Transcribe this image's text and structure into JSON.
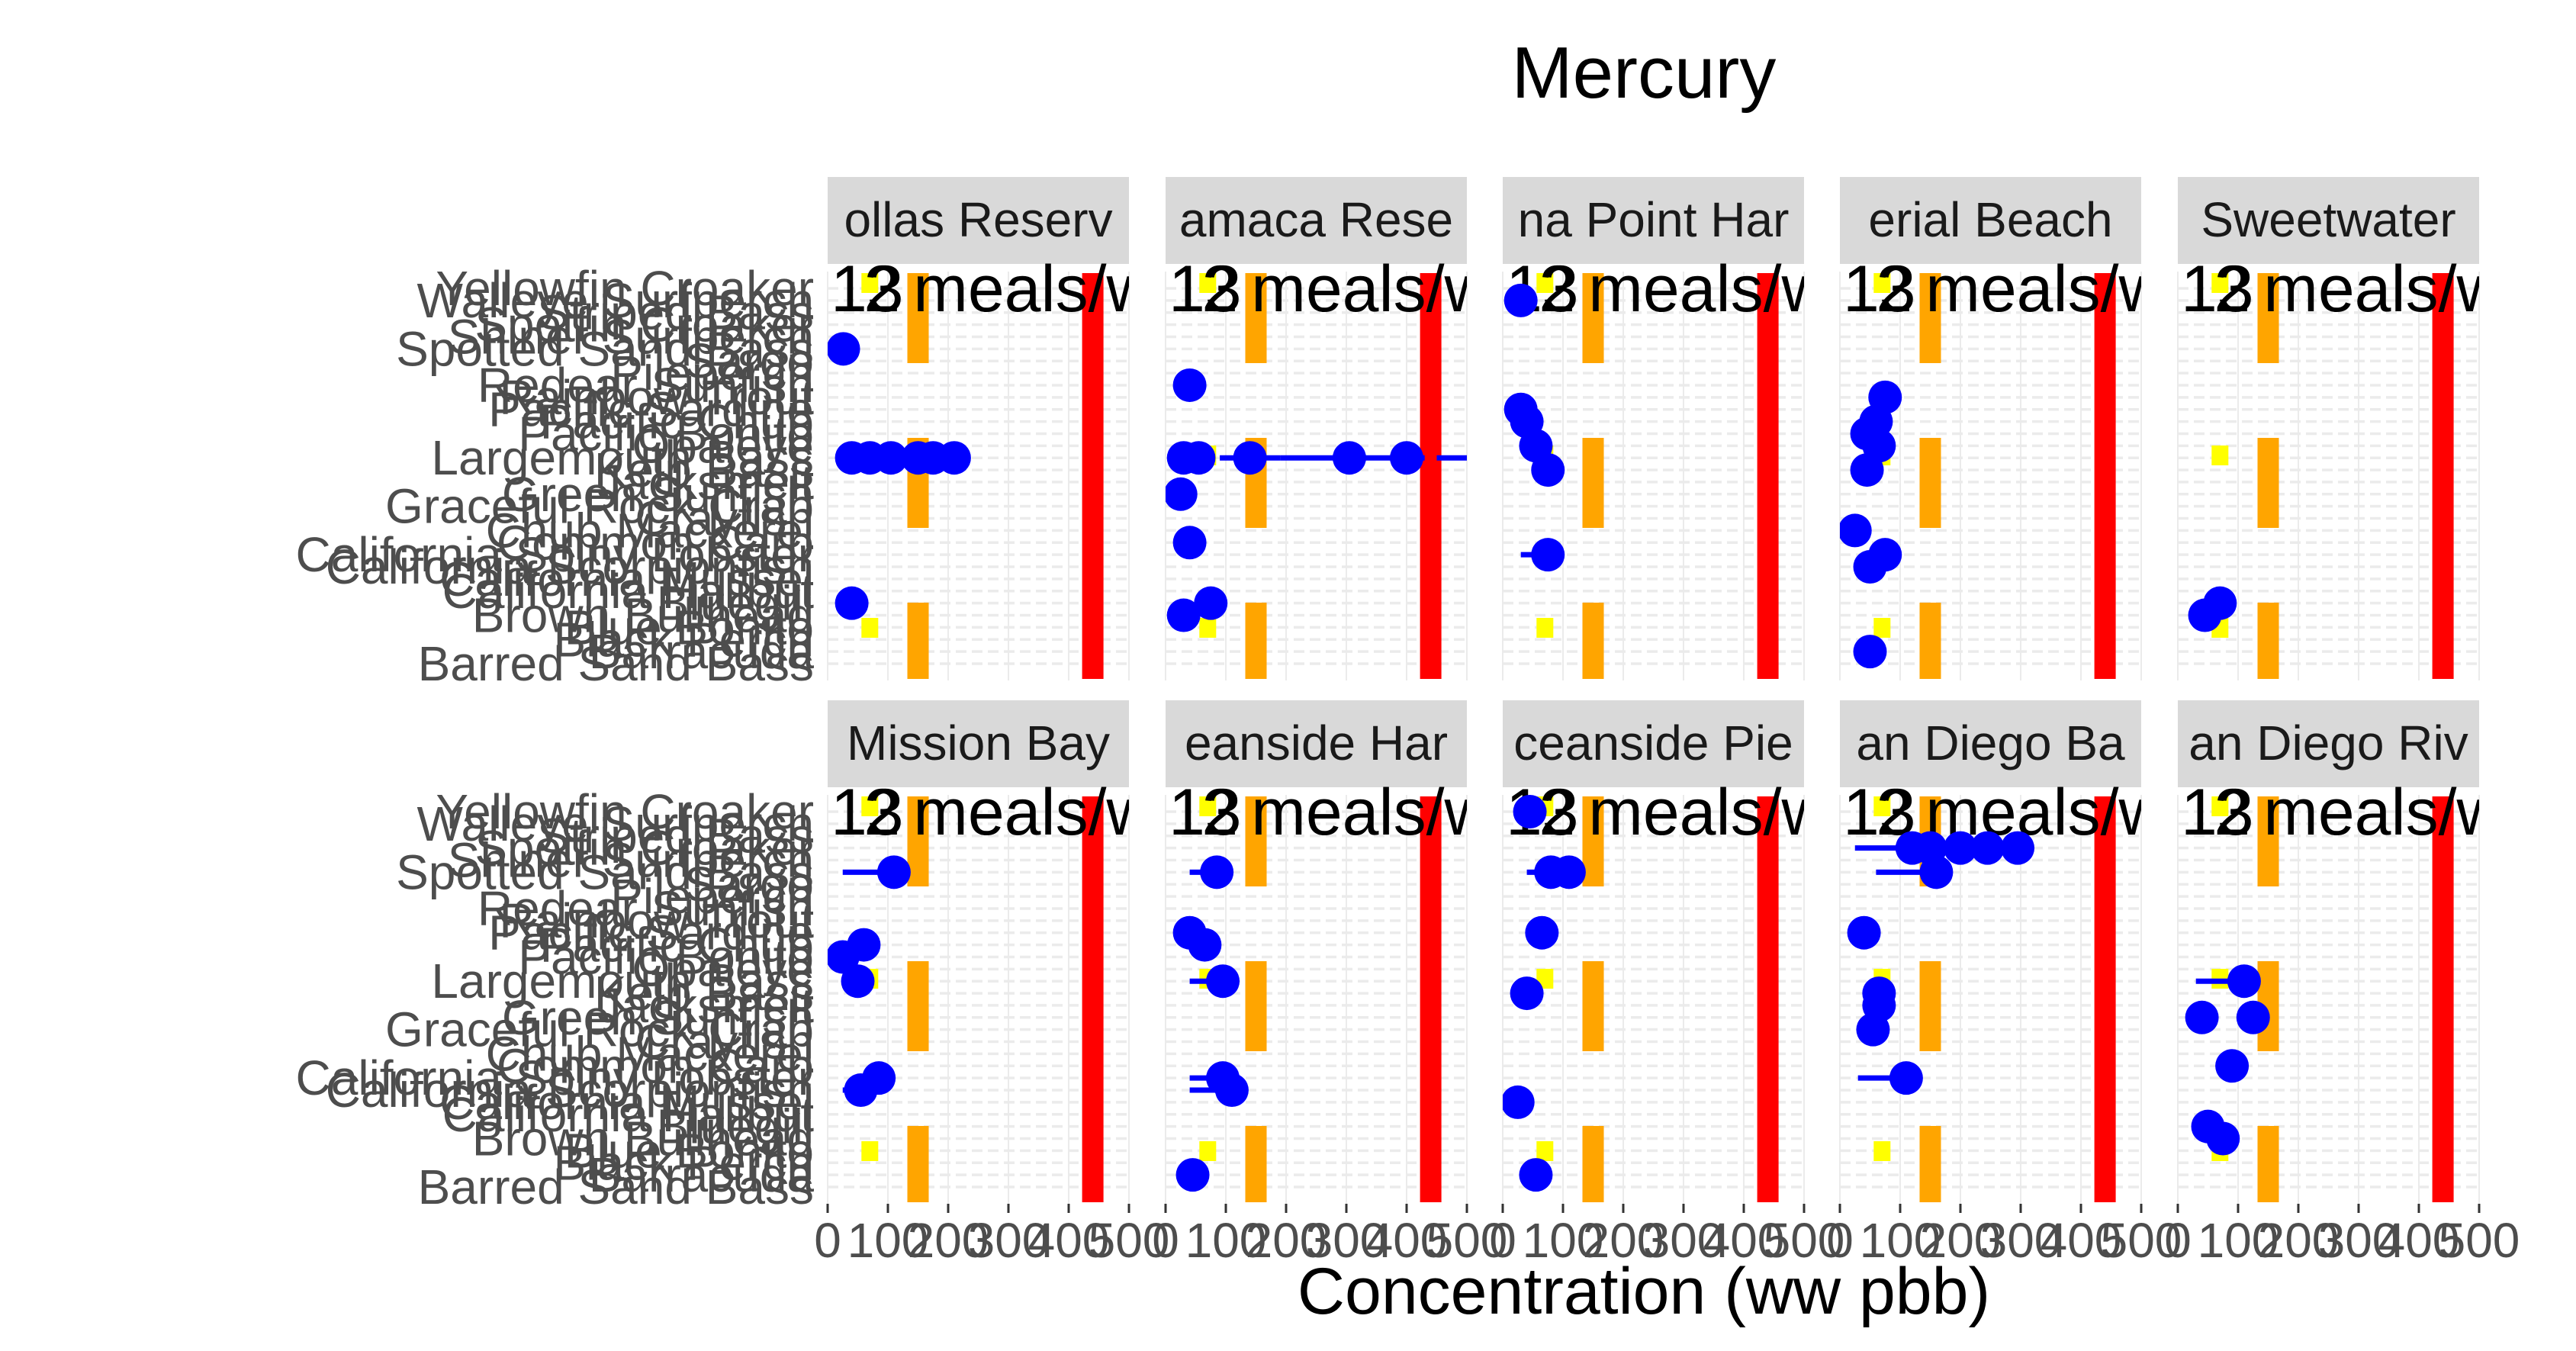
{
  "chart_data": {
    "type": "scatter",
    "title": "Mercury",
    "xlabel": "Concentration (ww pbb)",
    "ylabel": "",
    "xlim": [
      0,
      500
    ],
    "x_ticks": [
      0,
      100,
      200,
      300,
      400,
      500
    ],
    "x_tick_labels": [
      "0",
      "100",
      "200",
      "300",
      "400",
      "500"
    ],
    "species": [
      "Barred Sand Bass",
      "Barracuda",
      "Black Perch",
      "Blue Bonito",
      "Brown Bullhead",
      "Bluegill",
      "California Halibut",
      "California Mussel",
      "California Scorpionfish",
      "California Spiny Lobster",
      "Common Carp",
      "Chub Mackerel",
      "Crayfish",
      "Graceful Rock Crab",
      "Green Sunfish",
      "Jacksmelt",
      "Kelp Bass",
      "Largemouth Bass",
      "Opaleye",
      "Pacific Bonito",
      "Pacific Chub",
      "Pacific Sardine",
      "Rainbow Trout",
      "Redear Sunfish",
      "Pileperch",
      "Sargo",
      "Spotted Sand Bass",
      "Shiner Surfperch",
      "Spotfin Croaker",
      "Striped Bass",
      "Walleye Surfperch",
      "Yellowfin Croaker"
    ],
    "threshold_labels": [
      "13",
      "2",
      "meals/w"
    ],
    "threshold_lines": [
      {
        "label": "13",
        "value": 70,
        "color": "#ffff00"
      },
      {
        "label": "2",
        "value": 150,
        "color": "#ffa500"
      },
      {
        "label": "meals/w",
        "value": 440,
        "color": "#ff0000"
      }
    ],
    "facets": [
      {
        "name": "Lake Jennings/Hollas Reservoir",
        "label": "ollas Reserv",
        "points": [
          {
            "species": "Spotted Sand Bass",
            "x": 26
          },
          {
            "species": "Largemouth Bass",
            "x": 40,
            "xmin": 20,
            "xmax": 60
          },
          {
            "species": "Largemouth Bass",
            "x": 70,
            "xmin": 50,
            "xmax": 95
          },
          {
            "species": "Largemouth Bass",
            "x": 105,
            "xmin": 85,
            "xmax": 130
          },
          {
            "species": "Largemouth Bass",
            "x": 150,
            "xmin": 120,
            "xmax": 180
          },
          {
            "species": "Largemouth Bass",
            "x": 175,
            "xmin": 150,
            "xmax": 205
          },
          {
            "species": "Largemouth Bass",
            "x": 210,
            "xmin": 180,
            "xmax": 235
          },
          {
            "species": "Bluegill",
            "x": 40
          }
        ]
      },
      {
        "name": "Cuyamaca Reservoir",
        "label": "amaca Rese",
        "points": [
          {
            "species": "Redear Sunfish",
            "x": 40
          },
          {
            "species": "Largemouth Bass",
            "x": 30,
            "xmin": 20,
            "xmax": 40
          },
          {
            "species": "Largemouth Bass",
            "x": 55,
            "xmin": 40,
            "xmax": 70
          },
          {
            "species": "Largemouth Bass",
            "x": 140,
            "xmin": 90,
            "xmax": 190
          },
          {
            "species": "Largemouth Bass",
            "x": 305,
            "xmin": 190,
            "xmax": 330
          },
          {
            "species": "Largemouth Bass",
            "x": 400,
            "xmin": 330,
            "xmax": 430
          },
          {
            "species": "Largemouth Bass",
            "x": 535,
            "xmin": 450,
            "xmax": 550
          },
          {
            "species": "Green Sunfish",
            "x": 25
          },
          {
            "species": "Common Carp",
            "x": 40
          },
          {
            "species": "Brown Bullhead",
            "x": 30
          },
          {
            "species": "Bluegill",
            "x": 75
          }
        ]
      },
      {
        "name": "Dana Point Harbor",
        "label": "na Point Har",
        "points": [
          {
            "species": "Walleye Surfperch",
            "x": 30,
            "xmin": 15,
            "xmax": 45
          },
          {
            "species": "Pacific Sardine",
            "x": 30
          },
          {
            "species": "Pacific Chub",
            "x": 40
          },
          {
            "species": "Opaleye",
            "x": 55
          },
          {
            "species": "Kelp Bass",
            "x": 75
          },
          {
            "species": "California Spiny Lobster",
            "x": 75,
            "xmin": 30,
            "xmax": 85
          }
        ]
      },
      {
        "name": "Imperial Beach",
        "label": "erial Beach",
        "points": [
          {
            "species": "Rainbow Trout",
            "x": 75
          },
          {
            "species": "Pacific Bonito",
            "x": 45
          },
          {
            "species": "Pacific Chub",
            "x": 60
          },
          {
            "species": "Opaleye",
            "x": 65
          },
          {
            "species": "Kelp Bass",
            "x": 45
          },
          {
            "species": "California Spiny Lobster",
            "x": 75
          },
          {
            "species": "Chub Mackerel",
            "x": 25
          },
          {
            "species": "California Scorpionfish",
            "x": 50
          },
          {
            "species": "Barracuda",
            "x": 50
          }
        ]
      },
      {
        "name": "Sweetwater Reservoir",
        "label": "Sweetwater",
        "points": [
          {
            "species": "Brown Bullhead",
            "x": 45
          },
          {
            "species": "Bluegill",
            "x": 70
          }
        ]
      },
      {
        "name": "Mission Bay",
        "label": "Mission Bay",
        "points": [
          {
            "species": "Spotted Sand Bass",
            "x": 110,
            "xmin": 25,
            "xmax": 115
          },
          {
            "species": "Pacific Bonito",
            "x": 25
          },
          {
            "species": "Pacific Chub",
            "x": 60
          },
          {
            "species": "Largemouth Bass",
            "x": 50
          },
          {
            "species": "California Spiny Lobster",
            "x": 85
          },
          {
            "species": "California Scorpionfish",
            "x": 55,
            "xmin": 25,
            "xmax": 85
          }
        ]
      },
      {
        "name": "Oceanside Harbor",
        "label": "eanside Har",
        "points": [
          {
            "species": "Spotted Sand Bass",
            "x": 85,
            "xmin": 40,
            "xmax": 95
          },
          {
            "species": "Pacific Sardine",
            "x": 40
          },
          {
            "species": "Pacific Chub",
            "x": 65
          },
          {
            "species": "Largemouth Bass",
            "x": 95,
            "xmin": 40,
            "xmax": 110
          },
          {
            "species": "California Spiny Lobster",
            "x": 95,
            "xmin": 40,
            "xmax": 110
          },
          {
            "species": "California Scorpionfish",
            "x": 110,
            "xmin": 40,
            "xmax": 115
          },
          {
            "species": "Barracuda",
            "x": 45
          }
        ]
      },
      {
        "name": "Oceanside Pier",
        "label": "ceanside Pie",
        "points": [
          {
            "species": "Yellowfin Croaker",
            "x": 45
          },
          {
            "species": "Spotted Sand Bass",
            "x": 80,
            "xmin": 40,
            "xmax": 90
          },
          {
            "species": "Spotted Sand Bass",
            "x": 110,
            "xmin": 85,
            "xmax": 115
          },
          {
            "species": "Pacific Sardine",
            "x": 65
          },
          {
            "species": "Kelp Bass",
            "x": 40
          },
          {
            "species": "California Mussel",
            "x": 25
          },
          {
            "species": "Barracuda",
            "x": 55,
            "xmin": 40,
            "xmax": 80
          }
        ]
      },
      {
        "name": "San Diego Bay",
        "label": "an Diego Ba",
        "points": [
          {
            "species": "Spotfin Croaker",
            "x": 120,
            "xmin": 25,
            "xmax": 140
          },
          {
            "species": "Spotfin Croaker",
            "x": 150,
            "xmin": 120,
            "xmax": 175
          },
          {
            "species": "Spotfin Croaker",
            "x": 200,
            "xmin": 175,
            "xmax": 220
          },
          {
            "species": "Spotfin Croaker",
            "x": 245,
            "xmin": 220,
            "xmax": 265
          },
          {
            "species": "Spotfin Croaker",
            "x": 295,
            "xmin": 265,
            "xmax": 305
          },
          {
            "species": "Spotted Sand Bass",
            "x": 160,
            "xmin": 60,
            "xmax": 170
          },
          {
            "species": "Pacific Sardine",
            "x": 40
          },
          {
            "species": "Kelp Bass",
            "x": 65
          },
          {
            "species": "Jacksmelt",
            "x": 65
          },
          {
            "species": "Graceful Rock Crab",
            "x": 55
          },
          {
            "species": "California Spiny Lobster",
            "x": 110,
            "xmin": 30,
            "xmax": 115
          }
        ]
      },
      {
        "name": "San Diego River",
        "label": "an Diego Riv",
        "points": [
          {
            "species": "Largemouth Bass",
            "x": 110,
            "xmin": 30,
            "xmax": 115
          },
          {
            "species": "Green Sunfish",
            "x": 40
          },
          {
            "species": "Green Sunfish",
            "x": 125
          },
          {
            "species": "Common Carp",
            "x": 90
          },
          {
            "species": "Brown Bullhead",
            "x": 75
          },
          {
            "species": "Bluegill",
            "x": 50
          }
        ]
      }
    ]
  }
}
